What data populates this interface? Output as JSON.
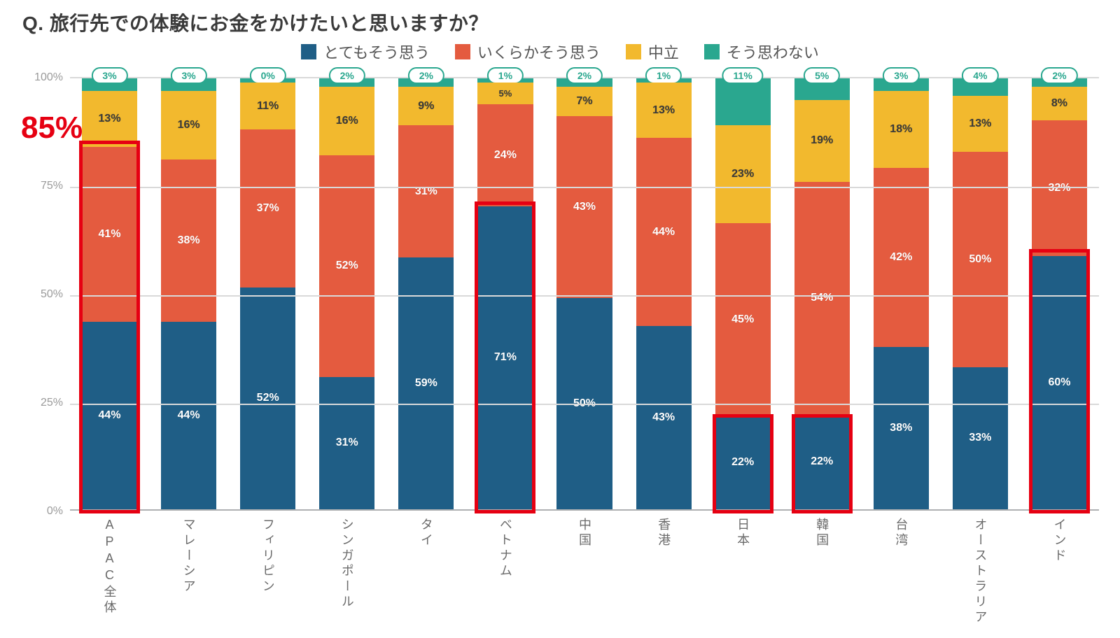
{
  "title": "Q. 旅行先での体験にお金をかけたいと思いますか？",
  "chart": {
    "type": "stacked-bar-100",
    "ylim": [
      0,
      100
    ],
    "ytick_step": 25,
    "yticks": [
      "0%",
      "25%",
      "50%",
      "75%",
      "100%"
    ],
    "grid_color": "#d9d9d9",
    "axis_color": "#aeb0b2",
    "background_color": "#ffffff",
    "bar_width_pct": 70,
    "label_fontsize": 16,
    "xlabel_fontsize": 18,
    "label_color": "#ffffff",
    "legend": [
      {
        "key": "strongly_agree",
        "label": "とてもそう思う",
        "color": "#1f5e86"
      },
      {
        "key": "somewhat_agree",
        "label": "いくらかそう思う",
        "color": "#e45b3f"
      },
      {
        "key": "neutral",
        "label": "中立",
        "color": "#f2b92e"
      },
      {
        "key": "disagree",
        "label": "そう思わない",
        "color": "#2aa78f"
      }
    ],
    "categories": [
      "APAC全体",
      "マレーシア",
      "フィリピン",
      "シンガポール",
      "タイ",
      "ベトナム",
      "中国",
      "香港",
      "日本",
      "韓国",
      "台湾",
      "オーストラリア",
      "インド"
    ],
    "series": {
      "strongly_agree": [
        44,
        44,
        52,
        31,
        59,
        71,
        50,
        43,
        22,
        22,
        38,
        33,
        60
      ],
      "somewhat_agree": [
        41,
        38,
        37,
        52,
        31,
        24,
        43,
        44,
        45,
        54,
        42,
        50,
        32
      ],
      "neutral": [
        13,
        16,
        11,
        16,
        9,
        5,
        7,
        13,
        23,
        19,
        18,
        13,
        8
      ],
      "disagree": [
        3,
        3,
        0,
        2,
        2,
        1,
        2,
        1,
        11,
        5,
        3,
        4,
        2
      ]
    },
    "disagree_pill": {
      "border_color": "#2aa78f",
      "text_color": "#2aa78f",
      "threshold_pct": 4
    },
    "callout": {
      "text": "85%",
      "color": "#e60012",
      "fontsize": 44
    },
    "highlights": {
      "color": "#e60012",
      "border_width": 5,
      "boxes": [
        {
          "category_index": 0,
          "from_pct": 0,
          "to_pct": 85
        },
        {
          "category_index": 5,
          "from_pct": 0,
          "to_pct": 71
        },
        {
          "category_index": 8,
          "from_pct": 0,
          "to_pct": 22
        },
        {
          "category_index": 9,
          "from_pct": 0,
          "to_pct": 22
        },
        {
          "category_index": 12,
          "from_pct": 0,
          "to_pct": 60
        }
      ]
    }
  }
}
